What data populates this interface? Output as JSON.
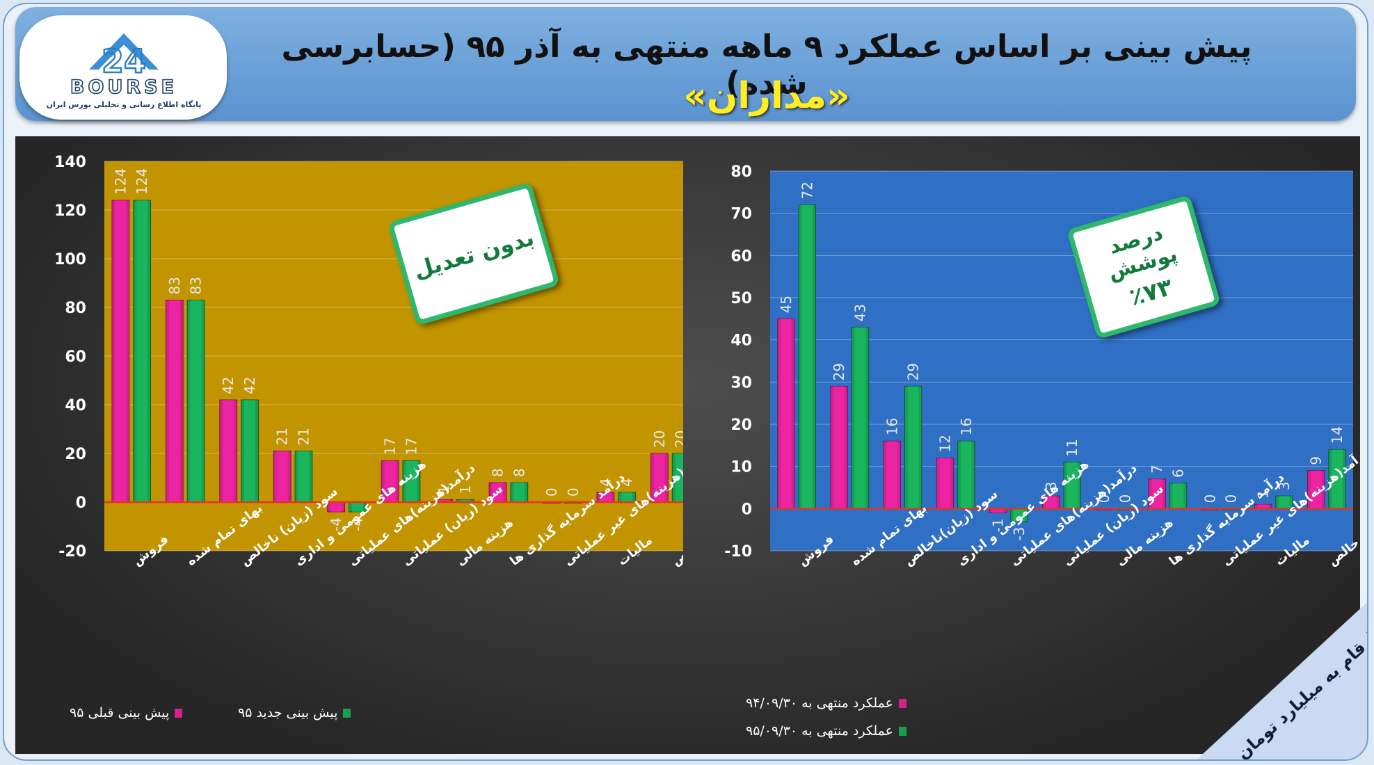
{
  "header": {
    "title_line1": "پیش بینی بر اساس عملکرد ۹ ماهه منتهی به آذر ۹۵ (حسابرسی شده)",
    "title_line2": "«مداران»"
  },
  "logo": {
    "name": "24 BOURSE",
    "tagline": "پایگاه اطلاع رسانی و تحلیلی بورس ایران"
  },
  "unit_note": "ارقام به میلیارد تومان",
  "categories": [
    "فروش",
    "بهای تمام شده",
    "سود (زیان) ناخالص",
    "هزینه های عمومی و اداری",
    "درآمد(هزینه)های عملیاتی",
    "سود (زیان) عملیاتی",
    "هزینه مالی",
    "درآمد سرمایه گذاری ها",
    "درآمد(هزینه)های غیر عملیاتی",
    "مالیات",
    "سود خالص"
  ],
  "colors": {
    "series_a": "#d6208f",
    "series_b": "#17a052",
    "left_plot_bg": "#c19400",
    "right_plot_bg": "#2f6fc4",
    "zero_line": "#e8321f",
    "callout_border": "#2fb86b"
  },
  "chart_data": [
    {
      "type": "bar",
      "id": "left",
      "categories": [
        "فروش",
        "بهای تمام شده",
        "سود (زیان) ناخالص",
        "هزینه های عمومی و اداری",
        "درآمد(هزینه)های عملیاتی",
        "سود (زیان) عملیاتی",
        "هزینه مالی",
        "درآمد سرمایه گذاری ها",
        "درآمد(هزینه)های غیر عملیاتی",
        "مالیات",
        "سود خالص"
      ],
      "series": [
        {
          "name": "پیش بینی قبلی ۹۵",
          "values": [
            124,
            83,
            42,
            21,
            -4,
            17,
            1,
            8,
            0,
            4,
            20
          ]
        },
        {
          "name": "پیش بینی جدید ۹۵",
          "values": [
            124,
            83,
            42,
            21,
            -4,
            17,
            1,
            8,
            0,
            4,
            20
          ]
        }
      ],
      "ylim": [
        -20,
        140
      ],
      "yticks": [
        140,
        120,
        100,
        80,
        60,
        40,
        20,
        0,
        -20
      ],
      "legend": "bottom",
      "grid": true,
      "annotation": "بدون تعدیل"
    },
    {
      "type": "bar",
      "id": "right",
      "categories": [
        "فروش",
        "بهای تمام شده",
        "سود (زیان)ناخالص",
        "هزینه های عمومی و اداری",
        "درآمد(هزینه)های عملیاتی",
        "سود (زیان) عملیاتی",
        "هزینه مالی",
        "درآمد سرمایه گذاری ها",
        "درآمد(هزینه)های غیر عملیاتی",
        "مالیات",
        "سود خالص"
      ],
      "series": [
        {
          "name": "عملکرد منتهی به ۹۴/۰۹/۳۰",
          "values": [
            45,
            29,
            16,
            12,
            -1,
            3,
            0,
            7,
            0,
            1,
            9
          ]
        },
        {
          "name": "عملکرد منتهی به ۹۵/۰۹/۳۰",
          "values": [
            72,
            43,
            29,
            16,
            -3,
            11,
            0,
            6,
            0,
            3,
            14
          ]
        }
      ],
      "ylim": [
        -10,
        80
      ],
      "yticks": [
        80,
        70,
        60,
        50,
        40,
        30,
        20,
        10,
        0,
        -10
      ],
      "legend": "bottom",
      "grid": true,
      "annotation": "درصد پوشش",
      "annotation_value": "٪۷۳"
    }
  ]
}
